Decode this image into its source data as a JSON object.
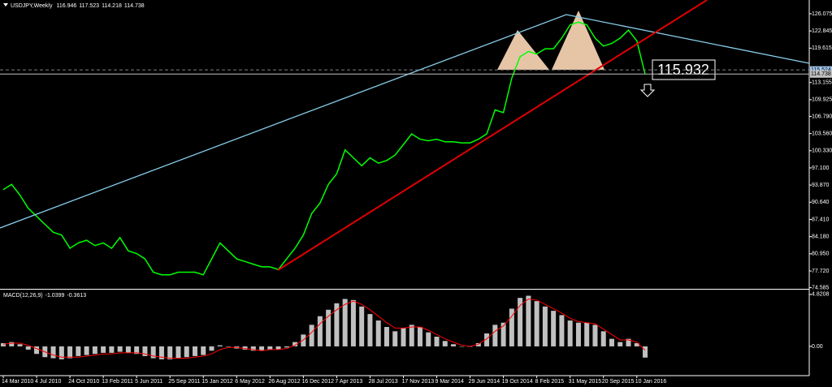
{
  "chart_data": [
    {
      "type": "line",
      "symbol": "USDJPY,Weekly",
      "last_bar": {
        "open": 116.946,
        "high": 117.523,
        "low": 114.218
      },
      "categories": [
        "14 Mar 2010",
        null,
        null,
        null,
        "4 Jul 2010",
        null,
        null,
        null,
        "24 Oct 2010",
        null,
        null,
        null,
        "13 Feb 2011",
        null,
        null,
        null,
        "5 Jun 2011",
        null,
        null,
        null,
        "25 Sep 2011",
        null,
        null,
        null,
        "15 Jan 2012",
        null,
        null,
        null,
        "6 May 2012",
        null,
        null,
        null,
        "26 Aug 2012",
        null,
        null,
        null,
        "16 Dec 2012",
        null,
        null,
        null,
        "7 Apr 2013",
        null,
        null,
        null,
        "28 Jul 2013",
        null,
        null,
        null,
        "17 Nov 2013",
        null,
        null,
        null,
        "9 Mar 2014",
        null,
        null,
        null,
        "29 Jun 2014",
        null,
        null,
        null,
        "19 Oct 2014",
        null,
        null,
        null,
        "8 Feb 2015",
        null,
        null,
        null,
        "31 May 2015",
        null,
        null,
        null,
        "20 Sep 2015",
        null,
        null,
        null,
        "10 Jan 2016",
        null
      ],
      "values": [
        93,
        94,
        92,
        89.5,
        88,
        86.5,
        85,
        84.5,
        82,
        83,
        83.5,
        82.5,
        83,
        82,
        84,
        81.5,
        81,
        80,
        77.5,
        77,
        77,
        77.5,
        77.5,
        77.5,
        77,
        80,
        83,
        81.5,
        80,
        79.5,
        79,
        78.5,
        78.5,
        78,
        80,
        82,
        84.5,
        88.5,
        90.5,
        94,
        96,
        100.5,
        99,
        97.5,
        99,
        98,
        98.5,
        99.5,
        101.5,
        103.5,
        102.5,
        102.2,
        102.5,
        102,
        102,
        101.8,
        101.8,
        102.5,
        103.5,
        108,
        107.5,
        114,
        118,
        119,
        118.5,
        119.5,
        119.5,
        121.5,
        124,
        124.5,
        124,
        121.5,
        120,
        120.5,
        121.5,
        123,
        121,
        114.738
      ],
      "color": "#00ff00",
      "ylim": [
        74.52,
        128.36
      ],
      "yticks": [
        74.585,
        {
          "value": 77.72,
          "label": "77.720"
        },
        {
          "value": 80.95,
          "label": "80.950"
        },
        {
          "value": 84.18,
          "label": "84.180"
        },
        {
          "value": 87.41,
          "label": "87.410"
        },
        {
          "value": 90.64,
          "label": "90.640"
        },
        {
          "value": 93.87,
          "label": "93.870"
        },
        {
          "value": 97.1,
          "label": "97.100"
        },
        {
          "value": 100.33,
          "label": "100.330"
        },
        {
          "value": 103.56,
          "label": "103.560"
        },
        {
          "value": 106.79,
          "label": "106.790"
        },
        109.925,
        113.155,
        119.615,
        122.845,
        126.075
      ],
      "price_lines": [
        {
          "value": 115.524,
          "color": "#a6caf0"
        }
      ],
      "annotation": "115.932"
    },
    {
      "type": "bar",
      "title": "MACD(12,26,9)",
      "values": [
        0.3,
        0.4,
        0.2,
        -0.3,
        -0.7,
        -1.0,
        -1.1,
        -1.2,
        -1.1,
        -0.9,
        -0.8,
        -0.7,
        -0.6,
        -0.6,
        -0.5,
        -0.6,
        -0.7,
        -0.9,
        -1.1,
        -1.2,
        -1.2,
        -1.1,
        -1.0,
        -0.9,
        -0.8,
        -0.4,
        0.1,
        0.0,
        -0.2,
        -0.3,
        -0.4,
        -0.4,
        -0.3,
        -0.3,
        -0.1,
        0.4,
        1.1,
        2.0,
        2.8,
        3.4,
        4.0,
        4.4,
        4.3,
        3.7,
        3.0,
        2.4,
        1.8,
        1.4,
        1.7,
        2.0,
        1.8,
        1.3,
        0.9,
        0.5,
        0.2,
        0.0,
        0.0,
        0.3,
        1.2,
        2.0,
        2.2,
        3.5,
        4.5,
        4.7,
        4.2,
        3.7,
        3.3,
        2.9,
        2.4,
        2.2,
        2.2,
        2.0,
        1.4,
        0.7,
        0.4,
        0.7,
        0.3,
        -1.0399
      ],
      "color": "#c0c0c0",
      "signal": {
        "color": "#ff0000",
        "values": [
          0.2,
          0.3,
          0.3,
          0.1,
          -0.2,
          -0.5,
          -0.8,
          -1.0,
          -1.0,
          -1.0,
          -0.9,
          -0.8,
          -0.7,
          -0.7,
          -0.6,
          -0.6,
          -0.6,
          -0.7,
          -0.9,
          -1.0,
          -1.1,
          -1.1,
          -1.1,
          -1.0,
          -0.9,
          -0.7,
          -0.3,
          -0.1,
          -0.1,
          -0.2,
          -0.3,
          -0.4,
          -0.3,
          -0.3,
          -0.2,
          0.1,
          0.6,
          1.3,
          2.1,
          2.8,
          3.4,
          3.9,
          4.2,
          3.9,
          3.4,
          2.8,
          2.2,
          1.7,
          1.7,
          1.8,
          1.8,
          1.5,
          1.1,
          0.7,
          0.4,
          0.1,
          0.0,
          0.2,
          0.7,
          1.4,
          1.9,
          2.8,
          3.8,
          4.4,
          4.3,
          3.9,
          3.5,
          3.1,
          2.6,
          2.3,
          2.2,
          2.1,
          1.6,
          1.1,
          0.6,
          0.6,
          0.4,
          -0.3613
        ]
      },
      "ylim": [
        -2.64,
        5.19
      ],
      "yticks": [
        {
          "value": 0,
          "label": "0.00"
        },
        4.8208
      ]
    }
  ]
}
